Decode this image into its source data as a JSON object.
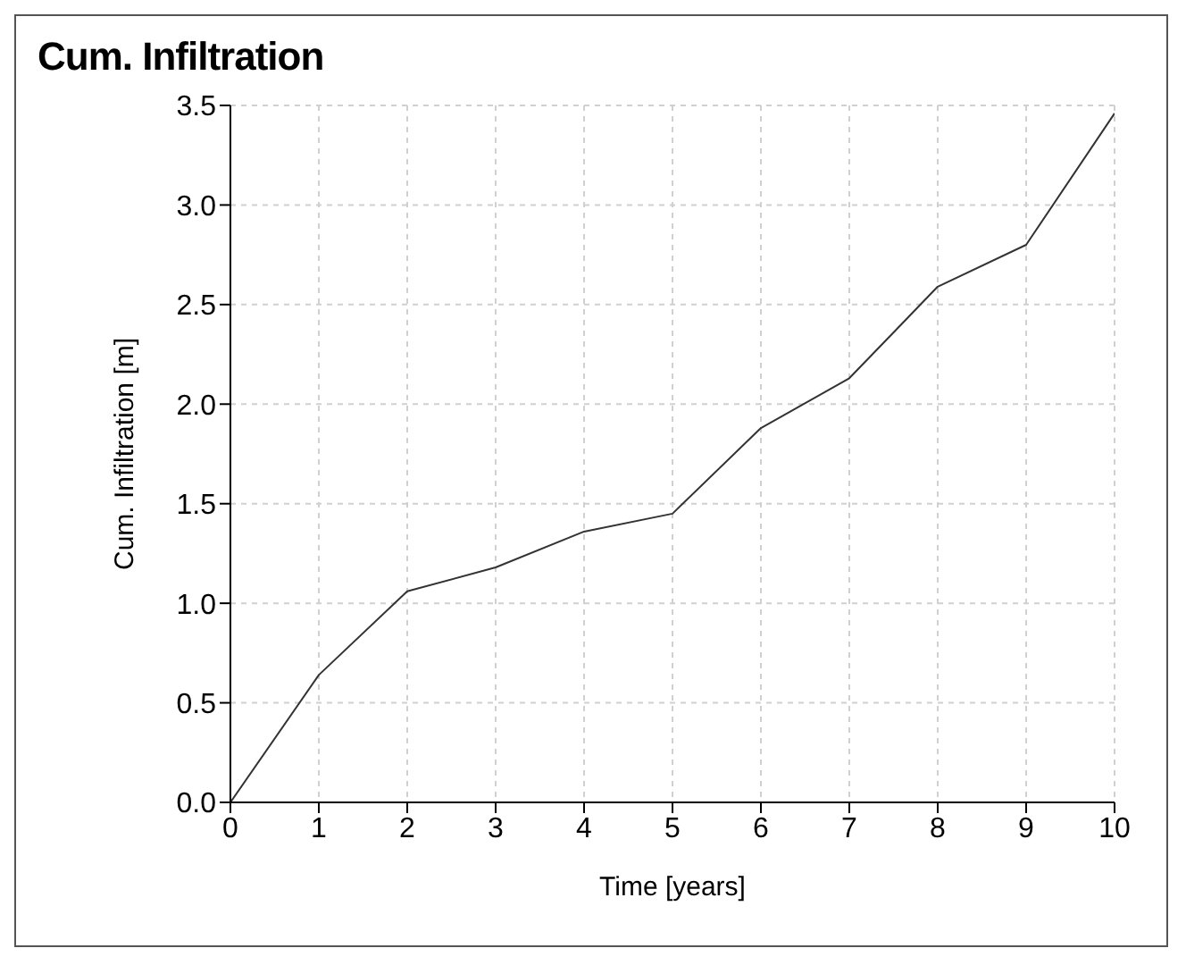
{
  "chart_data": {
    "type": "line",
    "title": "Cum. Infiltration",
    "xlabel": "Time [years]",
    "ylabel": "Cum. Infiltration [m]",
    "x": [
      0,
      1,
      2,
      3,
      4,
      5,
      6,
      7,
      8,
      9,
      10
    ],
    "series": [
      {
        "color": "#333333",
        "values": [
          0,
          0.64,
          1.06,
          1.18,
          1.36,
          1.45,
          1.88,
          2.13,
          2.59,
          2.8,
          3.46
        ]
      }
    ],
    "xlim": [
      0,
      10
    ],
    "xticks": [
      0,
      1,
      2,
      3,
      4,
      5,
      6,
      7,
      8,
      9,
      10
    ],
    "ylim": [
      0,
      3.5
    ],
    "yticks": [
      {
        "value": 0,
        "label": "0.0"
      },
      0.5,
      {
        "value": 1,
        "label": "1.0"
      },
      1.5,
      {
        "value": 2,
        "label": "2.0"
      },
      2.5,
      {
        "value": 3,
        "label": "3.0"
      },
      3.5
    ],
    "grid": true,
    "legend": false,
    "marker": "none",
    "line_style": "solid"
  }
}
